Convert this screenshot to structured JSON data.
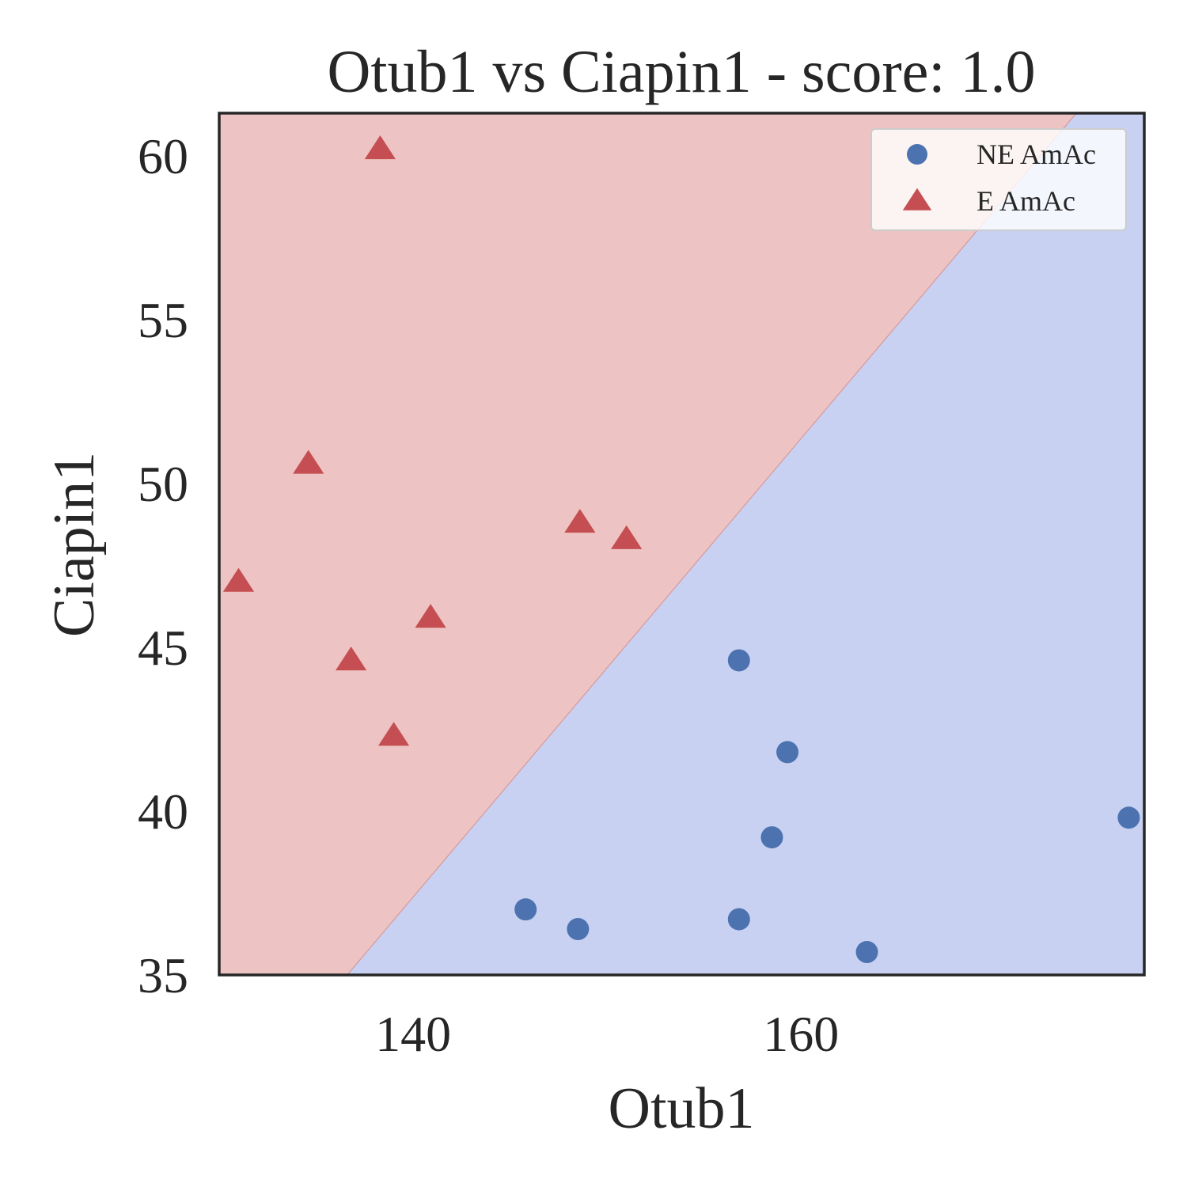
{
  "chart_data": {
    "type": "scatter",
    "title": "Otub1 vs Ciapin1 - score: 1.0",
    "xlabel": "Otub1",
    "ylabel": "Ciapin1",
    "xlim": [
      130.0,
      177.7
    ],
    "ylim": [
      35.0,
      61.3
    ],
    "xticks": [
      140,
      160
    ],
    "yticks": [
      35,
      40,
      45,
      50,
      55,
      60
    ],
    "grid": false,
    "legend_position": "top-right",
    "decision_boundary": {
      "points": [
        [
          136.6,
          35.0
        ],
        [
          174.2,
          61.3
        ]
      ],
      "region_above_color": "#edc4c3",
      "region_below_color": "#c9d1f2",
      "line_color": "#d49a9e"
    },
    "series": [
      {
        "name": "NE AmAc",
        "marker": "circle",
        "color": "#4c72b0",
        "points": [
          [
            145.8,
            37.0
          ],
          [
            148.5,
            36.4
          ],
          [
            156.8,
            36.7
          ],
          [
            163.4,
            35.7
          ],
          [
            158.5,
            39.2
          ],
          [
            156.8,
            44.6
          ],
          [
            159.3,
            41.8
          ],
          [
            176.9,
            39.8
          ]
        ]
      },
      {
        "name": "E AmAc",
        "marker": "triangle",
        "color": "#c44e52",
        "points": [
          [
            138.3,
            60.2
          ],
          [
            134.6,
            50.6
          ],
          [
            131.0,
            47.0
          ],
          [
            136.8,
            44.6
          ],
          [
            139.0,
            42.3
          ],
          [
            140.9,
            45.9
          ],
          [
            148.6,
            48.8
          ],
          [
            151.0,
            48.3
          ]
        ]
      }
    ]
  }
}
